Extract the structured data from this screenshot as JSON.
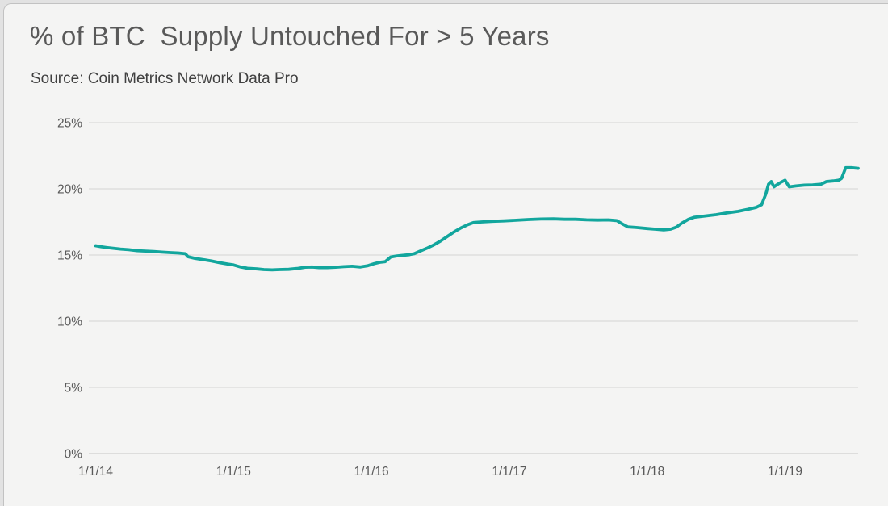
{
  "page": {
    "background_color": "#E2E2E2",
    "card_color": "#F4F4F3"
  },
  "header": {
    "title": "% of BTC  Supply Untouched For > 5 Years",
    "source": "Source: Coin Metrics Network Data Pro"
  },
  "chart_data": {
    "type": "line",
    "title": "% of BTC  Supply Untouched For > 5 Years",
    "subtitle": "Source: Coin Metrics Network Data Pro",
    "xlabel": "",
    "ylabel": "",
    "grid": true,
    "legend": "none",
    "line_color": "#12A69D",
    "grid_color": "#D9D9D9",
    "zero_grid_color": "#CFCFCF",
    "axis_text_color": "#595959",
    "x_domain": [
      2013.95,
      2019.53
    ],
    "y_domain": [
      0,
      25
    ],
    "y_ticks": [
      {
        "value": 0,
        "label": "0%"
      },
      {
        "value": 5,
        "label": "5%"
      },
      {
        "value": 10,
        "label": "10%"
      },
      {
        "value": 15,
        "label": "15%"
      },
      {
        "value": 20,
        "label": "20%"
      },
      {
        "value": 25,
        "label": "25%"
      }
    ],
    "x_ticks": [
      {
        "value": 2014,
        "label": "1/1/14"
      },
      {
        "value": 2015,
        "label": "1/1/15"
      },
      {
        "value": 2016,
        "label": "1/1/16"
      },
      {
        "value": 2017,
        "label": "1/1/17"
      },
      {
        "value": 2018,
        "label": "1/1/18"
      },
      {
        "value": 2019,
        "label": "1/1/19"
      }
    ],
    "series": [
      {
        "name": "% of BTC supply untouched for more than 5 years",
        "points": [
          [
            2014.0,
            15.7
          ],
          [
            2014.04,
            15.62
          ],
          [
            2014.08,
            15.57
          ],
          [
            2014.12,
            15.52
          ],
          [
            2014.18,
            15.45
          ],
          [
            2014.24,
            15.4
          ],
          [
            2014.3,
            15.33
          ],
          [
            2014.36,
            15.3
          ],
          [
            2014.42,
            15.27
          ],
          [
            2014.48,
            15.22
          ],
          [
            2014.54,
            15.18
          ],
          [
            2014.6,
            15.15
          ],
          [
            2014.65,
            15.1
          ],
          [
            2014.67,
            14.87
          ],
          [
            2014.72,
            14.75
          ],
          [
            2014.78,
            14.65
          ],
          [
            2014.84,
            14.55
          ],
          [
            2014.9,
            14.42
          ],
          [
            2014.96,
            14.32
          ],
          [
            2015.0,
            14.25
          ],
          [
            2015.05,
            14.1
          ],
          [
            2015.1,
            14.0
          ],
          [
            2015.17,
            13.95
          ],
          [
            2015.22,
            13.9
          ],
          [
            2015.28,
            13.88
          ],
          [
            2015.33,
            13.9
          ],
          [
            2015.4,
            13.92
          ],
          [
            2015.46,
            13.98
          ],
          [
            2015.52,
            14.08
          ],
          [
            2015.57,
            14.1
          ],
          [
            2015.62,
            14.05
          ],
          [
            2015.68,
            14.05
          ],
          [
            2015.74,
            14.08
          ],
          [
            2015.8,
            14.12
          ],
          [
            2015.86,
            14.15
          ],
          [
            2015.92,
            14.1
          ],
          [
            2015.97,
            14.18
          ],
          [
            2016.02,
            14.35
          ],
          [
            2016.06,
            14.45
          ],
          [
            2016.1,
            14.5
          ],
          [
            2016.14,
            14.85
          ],
          [
            2016.18,
            14.92
          ],
          [
            2016.22,
            14.97
          ],
          [
            2016.27,
            15.02
          ],
          [
            2016.31,
            15.1
          ],
          [
            2016.35,
            15.28
          ],
          [
            2016.4,
            15.5
          ],
          [
            2016.45,
            15.75
          ],
          [
            2016.5,
            16.05
          ],
          [
            2016.55,
            16.4
          ],
          [
            2016.6,
            16.75
          ],
          [
            2016.65,
            17.05
          ],
          [
            2016.7,
            17.3
          ],
          [
            2016.74,
            17.45
          ],
          [
            2016.8,
            17.5
          ],
          [
            2016.88,
            17.55
          ],
          [
            2016.96,
            17.58
          ],
          [
            2017.05,
            17.63
          ],
          [
            2017.14,
            17.68
          ],
          [
            2017.23,
            17.72
          ],
          [
            2017.32,
            17.73
          ],
          [
            2017.4,
            17.7
          ],
          [
            2017.48,
            17.7
          ],
          [
            2017.56,
            17.66
          ],
          [
            2017.64,
            17.64
          ],
          [
            2017.72,
            17.65
          ],
          [
            2017.78,
            17.6
          ],
          [
            2017.82,
            17.35
          ],
          [
            2017.86,
            17.12
          ],
          [
            2017.92,
            17.08
          ],
          [
            2018.0,
            17.0
          ],
          [
            2018.06,
            16.95
          ],
          [
            2018.12,
            16.9
          ],
          [
            2018.17,
            16.95
          ],
          [
            2018.21,
            17.1
          ],
          [
            2018.25,
            17.4
          ],
          [
            2018.3,
            17.7
          ],
          [
            2018.34,
            17.85
          ],
          [
            2018.42,
            17.95
          ],
          [
            2018.5,
            18.05
          ],
          [
            2018.58,
            18.18
          ],
          [
            2018.66,
            18.3
          ],
          [
            2018.73,
            18.45
          ],
          [
            2018.79,
            18.6
          ],
          [
            2018.83,
            18.8
          ],
          [
            2018.86,
            19.6
          ],
          [
            2018.88,
            20.35
          ],
          [
            2018.9,
            20.55
          ],
          [
            2018.92,
            20.15
          ],
          [
            2018.94,
            20.3
          ],
          [
            2018.97,
            20.5
          ],
          [
            2019.0,
            20.65
          ],
          [
            2019.03,
            20.15
          ],
          [
            2019.08,
            20.22
          ],
          [
            2019.14,
            20.28
          ],
          [
            2019.2,
            20.3
          ],
          [
            2019.26,
            20.35
          ],
          [
            2019.3,
            20.55
          ],
          [
            2019.35,
            20.6
          ],
          [
            2019.39,
            20.65
          ],
          [
            2019.41,
            20.8
          ],
          [
            2019.44,
            21.6
          ],
          [
            2019.48,
            21.6
          ],
          [
            2019.53,
            21.55
          ]
        ]
      }
    ]
  }
}
